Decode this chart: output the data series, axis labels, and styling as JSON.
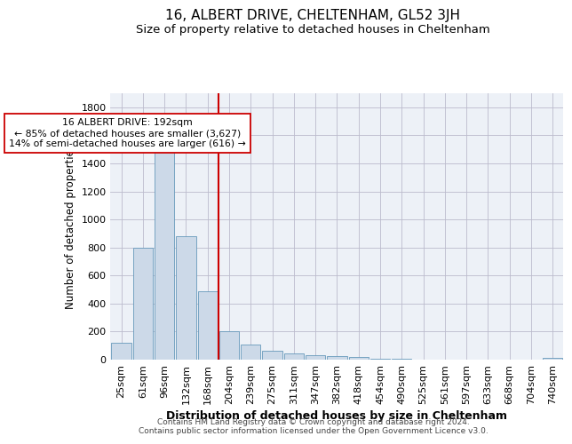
{
  "title": "16, ALBERT DRIVE, CHELTENHAM, GL52 3JH",
  "subtitle": "Size of property relative to detached houses in Cheltenham",
  "xlabel": "Distribution of detached houses by size in Cheltenham",
  "ylabel": "Number of detached properties",
  "footer_line1": "Contains HM Land Registry data © Crown copyright and database right 2024.",
  "footer_line2": "Contains public sector information licensed under the Open Government Licence v3.0.",
  "bar_labels": [
    "25sqm",
    "61sqm",
    "96sqm",
    "132sqm",
    "168sqm",
    "204sqm",
    "239sqm",
    "275sqm",
    "311sqm",
    "347sqm",
    "382sqm",
    "418sqm",
    "454sqm",
    "490sqm",
    "525sqm",
    "561sqm",
    "597sqm",
    "633sqm",
    "668sqm",
    "704sqm",
    "740sqm"
  ],
  "bar_values": [
    120,
    800,
    1480,
    880,
    490,
    205,
    105,
    65,
    45,
    32,
    25,
    20,
    5,
    4,
    3,
    2,
    2,
    1,
    1,
    1,
    10
  ],
  "bar_color": "#ccd9e8",
  "bar_edge_color": "#6699bb",
  "annotation_line1": "16 ALBERT DRIVE: 192sqm",
  "annotation_line2": "← 85% of detached houses are smaller (3,627)",
  "annotation_line3": "14% of semi-detached houses are larger (616) →",
  "vline_bar_index": 5,
  "vline_color": "#cc0000",
  "ylim": [
    0,
    1900
  ],
  "yticks": [
    0,
    200,
    400,
    600,
    800,
    1000,
    1200,
    1400,
    1600,
    1800
  ],
  "grid_color": "#bbbbcc",
  "background_color": "#edf1f7",
  "title_fontsize": 11,
  "subtitle_fontsize": 9.5,
  "xlabel_fontsize": 9,
  "ylabel_fontsize": 8.5,
  "tick_fontsize": 8,
  "footer_fontsize": 6.5
}
